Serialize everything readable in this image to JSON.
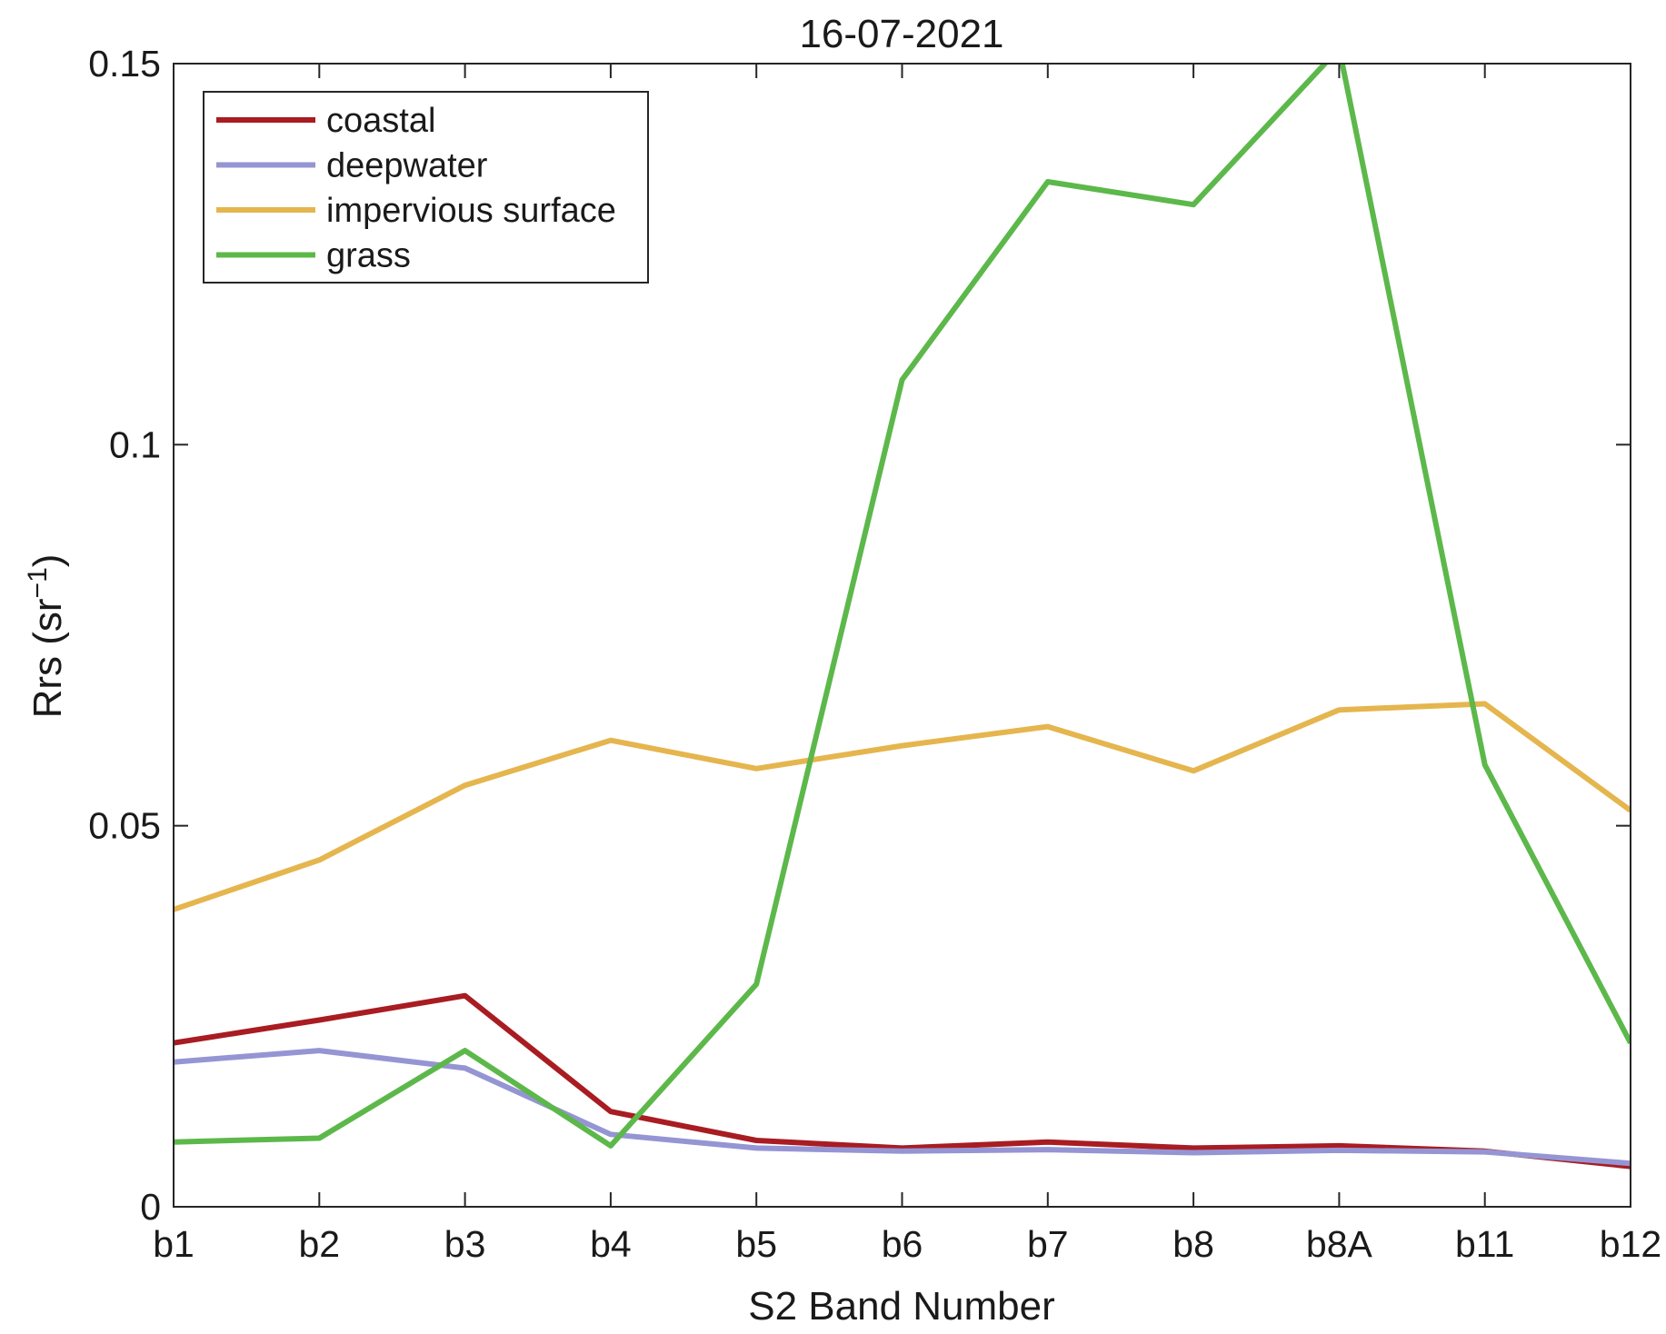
{
  "chart_data": {
    "type": "line",
    "title": "16-07-2021",
    "xlabel": "S2 Band Number",
    "ylabel": "Rrs (sr",
    "ylabel_sup": "−1",
    "ylabel_end": ")",
    "categories": [
      "b1",
      "b2",
      "b3",
      "b4",
      "b5",
      "b6",
      "b7",
      "b8",
      "b8A",
      "b11",
      "b12"
    ],
    "ylim": [
      0,
      0.15
    ],
    "yticks": [
      0,
      0.05,
      0.1,
      0.15
    ],
    "ytick_labels": [
      "0",
      "0.05",
      "0.1",
      "0.15"
    ],
    "grid": false,
    "legend_position": "top-left",
    "series": [
      {
        "name": "coastal",
        "color": "#a81c22",
        "values": [
          0.0215,
          0.0245,
          0.0277,
          0.0125,
          0.0087,
          0.0077,
          0.0085,
          0.0077,
          0.008,
          0.0073,
          0.0053
        ]
      },
      {
        "name": "deepwater",
        "color": "#9595d4",
        "values": [
          0.019,
          0.0205,
          0.0182,
          0.0095,
          0.0077,
          0.0073,
          0.0075,
          0.0071,
          0.0074,
          0.0072,
          0.0057
        ]
      },
      {
        "name": "impervious surface",
        "color": "#e5b54e",
        "values": [
          0.039,
          0.0455,
          0.0553,
          0.0612,
          0.0575,
          0.0605,
          0.063,
          0.0572,
          0.0652,
          0.066,
          0.052
        ]
      },
      {
        "name": "grass",
        "color": "#5cb84a",
        "values": [
          0.0085,
          0.009,
          0.0205,
          0.008,
          0.0292,
          0.1085,
          0.1345,
          0.1315,
          0.152,
          0.058,
          0.0215
        ]
      }
    ]
  }
}
